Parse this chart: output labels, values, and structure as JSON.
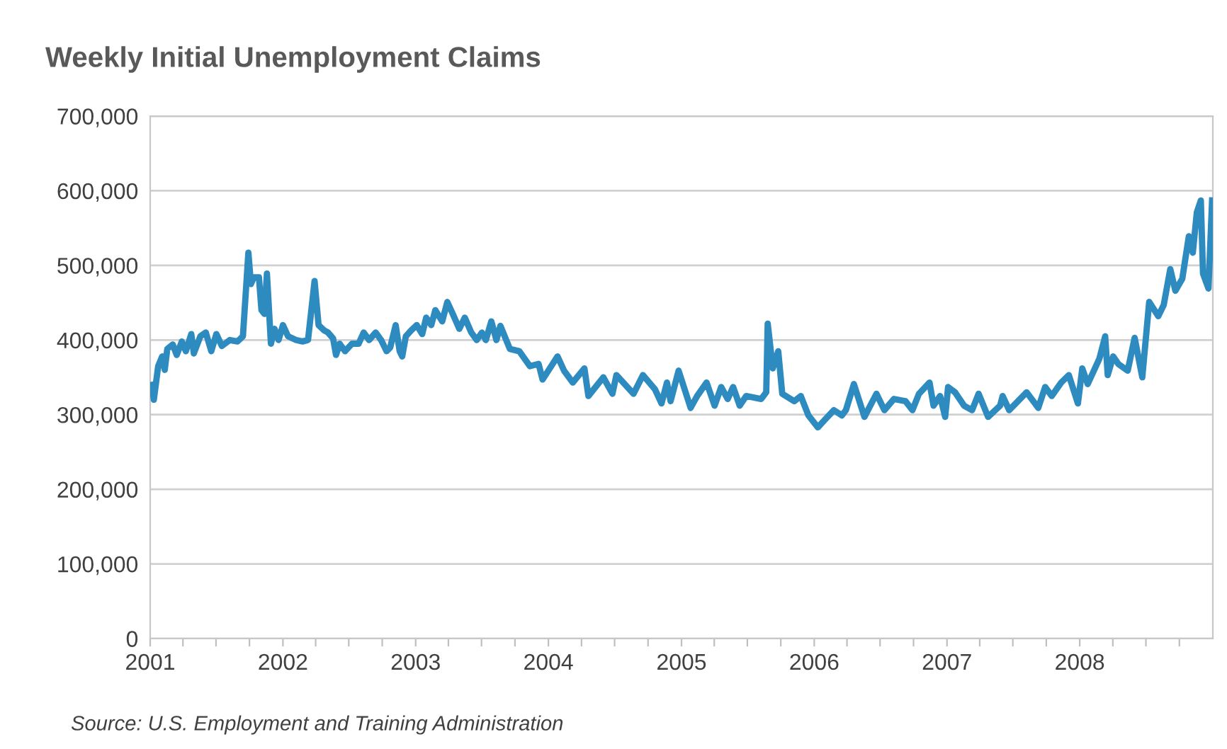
{
  "chart_data": {
    "type": "line",
    "title": "Weekly Initial Unemployment Claims",
    "annotations": [
      "Source: U.S. Employment and Training Administration"
    ],
    "series": [
      {
        "color": "#2e8bc0",
        "x": [
          "2001-01-06",
          "2001-01-11",
          "2001-01-23",
          "2001-02-03",
          "2001-02-10",
          "2001-02-17",
          "2001-03-04",
          "2001-03-15",
          "2001-03-29",
          "2001-04-09",
          "2001-04-24",
          "2001-05-01",
          "2001-05-19",
          "2001-06-03",
          "2001-06-18",
          "2001-07-02",
          "2001-07-17",
          "2001-08-08",
          "2001-08-29",
          "2001-09-13",
          "2001-09-28",
          "2001-10-05",
          "2001-10-13",
          "2001-10-27",
          "2001-11-03",
          "2001-11-11",
          "2001-11-18",
          "2001-11-29",
          "2001-12-09",
          "2001-12-20",
          "2002-01-01",
          "2002-01-15",
          "2002-02-06",
          "2002-02-24",
          "2002-03-11",
          "2002-03-29",
          "2002-04-09",
          "2002-04-24",
          "2002-05-05",
          "2002-05-19",
          "2002-05-27",
          "2002-06-06",
          "2002-06-21",
          "2002-07-10",
          "2002-07-28",
          "2002-08-11",
          "2002-08-26",
          "2002-09-13",
          "2002-09-28",
          "2002-10-13",
          "2002-10-23",
          "2002-11-07",
          "2002-11-18",
          "2002-11-25",
          "2002-12-05",
          "2002-12-20",
          "2003-01-04",
          "2003-01-19",
          "2003-01-30",
          "2003-02-13",
          "2003-02-24",
          "2003-03-15",
          "2003-03-29",
          "2003-04-13",
          "2003-05-01",
          "2003-05-16",
          "2003-06-03",
          "2003-06-18",
          "2003-07-02",
          "2003-07-13",
          "2003-07-28",
          "2003-08-11",
          "2003-08-22",
          "2003-09-17",
          "2003-10-13",
          "2003-11-11",
          "2003-12-05",
          "2003-12-16",
          "2004-01-26",
          "2004-02-13",
          "2004-03-08",
          "2004-04-09",
          "2004-04-20",
          "2004-05-31",
          "2004-06-25",
          "2004-07-06",
          "2004-08-22",
          "2004-09-17",
          "2004-10-20",
          "2004-11-07",
          "2004-11-22",
          "2004-12-02",
          "2004-12-24",
          "2005-01-26",
          "2005-02-13",
          "2005-03-11",
          "2005-04-02",
          "2005-04-20",
          "2005-05-08",
          "2005-05-23",
          "2005-06-10",
          "2005-06-28",
          "2005-08-08",
          "2005-08-22",
          "2005-08-26",
          "2005-09-09",
          "2005-09-24",
          "2005-10-05",
          "2005-11-07",
          "2005-11-25",
          "2005-12-16",
          "2006-01-11",
          "2006-01-30",
          "2006-02-24",
          "2006-03-18",
          "2006-03-29",
          "2006-04-20",
          "2006-05-19",
          "2006-06-21",
          "2006-07-13",
          "2006-08-08",
          "2006-09-09",
          "2006-09-28",
          "2006-10-16",
          "2006-11-14",
          "2006-11-25",
          "2006-12-13",
          "2006-12-27",
          "2007-01-04",
          "2007-01-23",
          "2007-02-17",
          "2007-03-11",
          "2007-03-29",
          "2007-04-24",
          "2007-05-27",
          "2007-06-03",
          "2007-06-21",
          "2007-08-08",
          "2007-09-09",
          "2007-09-28",
          "2007-10-16",
          "2007-11-11",
          "2007-12-02",
          "2007-12-27",
          "2008-01-08",
          "2008-01-23",
          "2008-02-24",
          "2008-03-11",
          "2008-03-18",
          "2008-04-02",
          "2008-04-16",
          "2008-05-12",
          "2008-05-31",
          "2008-06-21",
          "2008-07-10",
          "2008-08-04",
          "2008-08-19",
          "2008-09-06",
          "2008-09-20",
          "2008-10-09",
          "2008-10-27",
          "2008-11-07",
          "2008-11-18",
          "2008-11-29",
          "2008-12-05",
          "2008-12-20",
          "2008-12-30"
        ],
        "values": [
          340000,
          320000,
          365000,
          378000,
          360000,
          388000,
          394000,
          380000,
          398000,
          385000,
          408000,
          382000,
          405000,
          410000,
          385000,
          408000,
          392000,
          400000,
          398000,
          405000,
          517000,
          475000,
          484000,
          484000,
          440000,
          435000,
          489000,
          395000,
          415000,
          400000,
          420000,
          405000,
          400000,
          398000,
          400000,
          479000,
          420000,
          413000,
          410000,
          402000,
          380000,
          395000,
          385000,
          395000,
          395000,
          410000,
          400000,
          410000,
          400000,
          385000,
          390000,
          420000,
          385000,
          378000,
          405000,
          413000,
          420000,
          408000,
          430000,
          420000,
          440000,
          425000,
          451000,
          435000,
          415000,
          430000,
          410000,
          400000,
          410000,
          400000,
          425000,
          400000,
          419000,
          388000,
          385000,
          365000,
          368000,
          347000,
          378000,
          359000,
          343000,
          362000,
          325000,
          350000,
          328000,
          353000,
          328000,
          353000,
          334000,
          315000,
          343000,
          318000,
          359000,
          309000,
          325000,
          343000,
          312000,
          337000,
          321000,
          337000,
          312000,
          325000,
          321000,
          330000,
          422000,
          362000,
          385000,
          328000,
          318000,
          325000,
          299000,
          283000,
          293000,
          306000,
          299000,
          306000,
          341000,
          297000,
          328000,
          306000,
          321000,
          318000,
          306000,
          328000,
          343000,
          312000,
          325000,
          297000,
          337000,
          330000,
          312000,
          306000,
          328000,
          297000,
          312000,
          325000,
          306000,
          330000,
          309000,
          337000,
          325000,
          343000,
          353000,
          315000,
          362000,
          341000,
          375000,
          405000,
          353000,
          378000,
          368000,
          359000,
          403000,
          350000,
          451000,
          432000,
          447000,
          495000,
          466000,
          482000,
          539000,
          517000,
          571000,
          587000,
          489000,
          469000,
          587000
        ]
      }
    ],
    "xlim": [
      "2001-01-01",
      "2009-01-01"
    ],
    "xticks": [
      {
        "value": "2001-01-01",
        "label": "2001"
      },
      {
        "value": "2001-04-01",
        "label": null
      },
      {
        "value": "2001-07-01",
        "label": null
      },
      {
        "value": "2001-10-01",
        "label": null
      },
      {
        "value": "2002-01-01",
        "label": "2002"
      },
      {
        "value": "2002-04-01",
        "label": null
      },
      {
        "value": "2002-07-01",
        "label": null
      },
      {
        "value": "2002-10-01",
        "label": null
      },
      {
        "value": "2003-01-01",
        "label": "2003"
      },
      {
        "value": "2003-04-01",
        "label": null
      },
      {
        "value": "2003-07-01",
        "label": null
      },
      {
        "value": "2003-10-01",
        "label": null
      },
      {
        "value": "2004-01-01",
        "label": "2004"
      },
      {
        "value": "2004-04-01",
        "label": null
      },
      {
        "value": "2004-07-01",
        "label": null
      },
      {
        "value": "2004-10-01",
        "label": null
      },
      {
        "value": "2005-01-01",
        "label": "2005"
      },
      {
        "value": "2005-04-01",
        "label": null
      },
      {
        "value": "2005-07-01",
        "label": null
      },
      {
        "value": "2005-10-01",
        "label": null
      },
      {
        "value": "2006-01-01",
        "label": "2006"
      },
      {
        "value": "2006-04-01",
        "label": null
      },
      {
        "value": "2006-07-01",
        "label": null
      },
      {
        "value": "2006-10-01",
        "label": null
      },
      {
        "value": "2007-01-01",
        "label": "2007"
      },
      {
        "value": "2007-04-01",
        "label": null
      },
      {
        "value": "2007-07-01",
        "label": null
      },
      {
        "value": "2007-10-01",
        "label": null
      },
      {
        "value": "2008-01-01",
        "label": "2008"
      },
      {
        "value": "2008-04-01",
        "label": null
      },
      {
        "value": "2008-07-01",
        "label": null
      },
      {
        "value": "2008-10-01",
        "label": null
      }
    ],
    "ylim": [
      0,
      700000
    ],
    "yticks": [
      {
        "value": 0,
        "label": "0"
      },
      {
        "value": 100000,
        "label": "100,000"
      },
      {
        "value": 200000,
        "label": "200,000"
      },
      {
        "value": 300000,
        "label": "300,000"
      },
      {
        "value": 400000,
        "label": "400,000"
      },
      {
        "value": 500000,
        "label": "500,000"
      },
      {
        "value": 600000,
        "label": "600,000"
      },
      {
        "value": 700000,
        "label": "700,000"
      }
    ],
    "grid": "y",
    "line_style": "solid",
    "marker": "none"
  }
}
